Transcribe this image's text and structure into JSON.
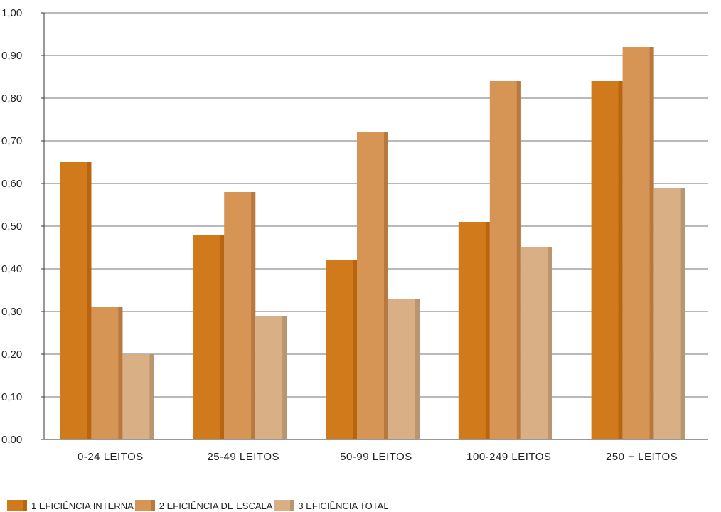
{
  "chart_data": {
    "type": "bar",
    "categories": [
      "0-24 LEITOS",
      "25-49 LEITOS",
      "50-99 LEITOS",
      "100-249 LEITOS",
      "250 + LEITOS"
    ],
    "series": [
      {
        "name": "1 EFICIÊNCIA INTERNA",
        "color": "#d17a1b",
        "side_color": "#b8650f",
        "values": [
          0.65,
          0.48,
          0.42,
          0.51,
          0.84
        ]
      },
      {
        "name": "2 EFICIÊNCIA DE ESCALA",
        "color": "#d69455",
        "side_color": "#b8793e",
        "values": [
          0.31,
          0.58,
          0.72,
          0.84,
          0.92
        ]
      },
      {
        "name": "3 EFICIÊNCIA TOTAL",
        "color": "#d9af86",
        "side_color": "#b89670",
        "values": [
          0.2,
          0.29,
          0.33,
          0.45,
          0.59
        ]
      }
    ],
    "yticks": [
      "0,00",
      "0,10",
      "0,20",
      "0,30",
      "0,40",
      "0,50",
      "0,60",
      "0,70",
      "0,80",
      "0,90",
      "1,00"
    ],
    "ylim": [
      0,
      1.0
    ],
    "grid": true,
    "legend_position": "bottom-left"
  }
}
